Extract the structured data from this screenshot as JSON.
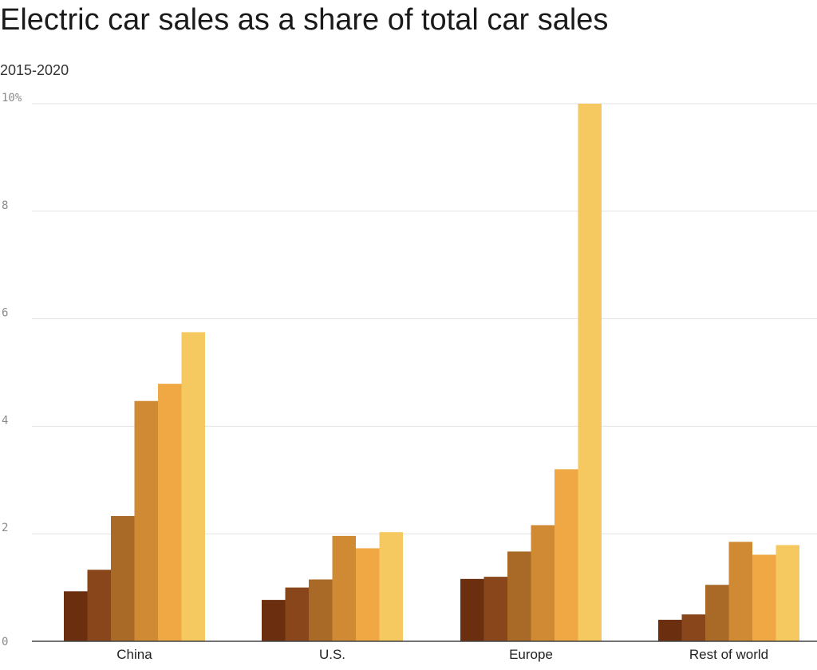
{
  "chart_data": {
    "type": "bar",
    "title": "Electric car sales as a share of total car sales",
    "subtitle": "2015-2020",
    "xlabel": "",
    "ylabel": "",
    "ylim": [
      0,
      10
    ],
    "y_ticks": [
      {
        "value": 0,
        "label": "0"
      },
      {
        "value": 2,
        "label": "2"
      },
      {
        "value": 4,
        "label": "4"
      },
      {
        "value": 6,
        "label": "6"
      },
      {
        "value": 8,
        "label": "8"
      },
      {
        "value": 10,
        "label": "10%"
      }
    ],
    "grid": true,
    "categories": [
      "China",
      "U.S.",
      "Europe",
      "Rest of world"
    ],
    "series": [
      {
        "color": "#6b2f10",
        "values": [
          0.93,
          0.77,
          1.16,
          0.4
        ]
      },
      {
        "color": "#89461a",
        "values": [
          1.33,
          1.0,
          1.2,
          0.5
        ]
      },
      {
        "color": "#a96a27",
        "values": [
          2.33,
          1.15,
          1.67,
          1.05
        ]
      },
      {
        "color": "#cf8a33",
        "values": [
          4.47,
          1.96,
          2.16,
          1.85
        ]
      },
      {
        "color": "#f0a844",
        "values": [
          4.79,
          1.73,
          3.2,
          1.61
        ]
      },
      {
        "color": "#f6c860",
        "values": [
          5.75,
          2.03,
          10.0,
          1.79
        ]
      }
    ]
  }
}
